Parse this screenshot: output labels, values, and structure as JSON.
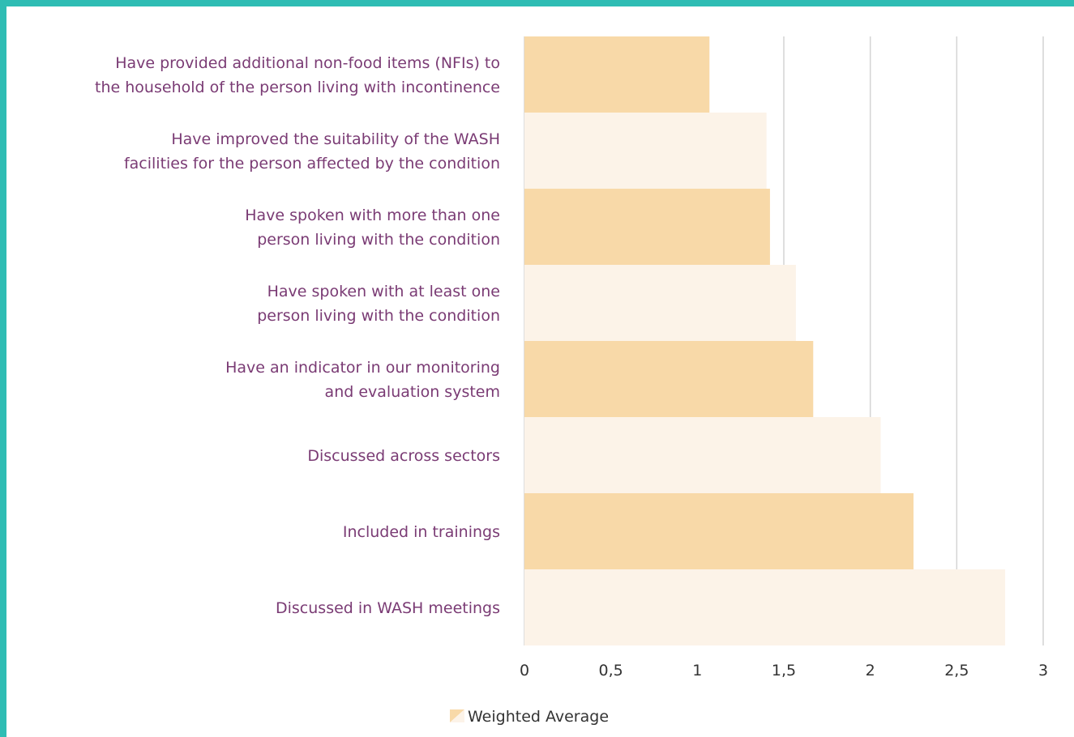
{
  "chart_data": {
    "type": "barh",
    "categories": [
      [
        "Have provided additional non-food items (NFIs) to",
        "the household of the person living with incontinence"
      ],
      [
        "Have improved the suitability of the WASH",
        "facilities for the person affected by the condition"
      ],
      [
        "Have spoken with more than one",
        "person living with the condition"
      ],
      [
        "Have spoken with at least one",
        "person living with the condition"
      ],
      [
        "Have an indicator in our monitoring",
        "and evaluation system"
      ],
      [
        "Discussed across sectors"
      ],
      [
        "Included in trainings"
      ],
      [
        "Discussed in WASH meetings"
      ]
    ],
    "series": [
      {
        "name": "Weighted Average",
        "color": "#f8d9a8",
        "colors": [
          "#f8d9a8",
          "#fcf3e8",
          "#f8d9a8",
          "#fcf3e8",
          "#f8d9a8",
          "#fcf3e8",
          "#f8d9a8",
          "#fcf3e8"
        ],
        "values": [
          1.07,
          1.4,
          1.42,
          1.57,
          1.67,
          2.06,
          2.25,
          2.78
        ]
      }
    ],
    "xlim": [
      0,
      3
    ],
    "xticks": [
      0,
      {
        "value": 0.5,
        "label": "0,5"
      },
      1,
      {
        "value": 1.5,
        "label": "1,5"
      },
      2,
      {
        "value": 2.5,
        "label": "2,5"
      },
      3
    ],
    "grid": true,
    "legend": "bottom"
  }
}
